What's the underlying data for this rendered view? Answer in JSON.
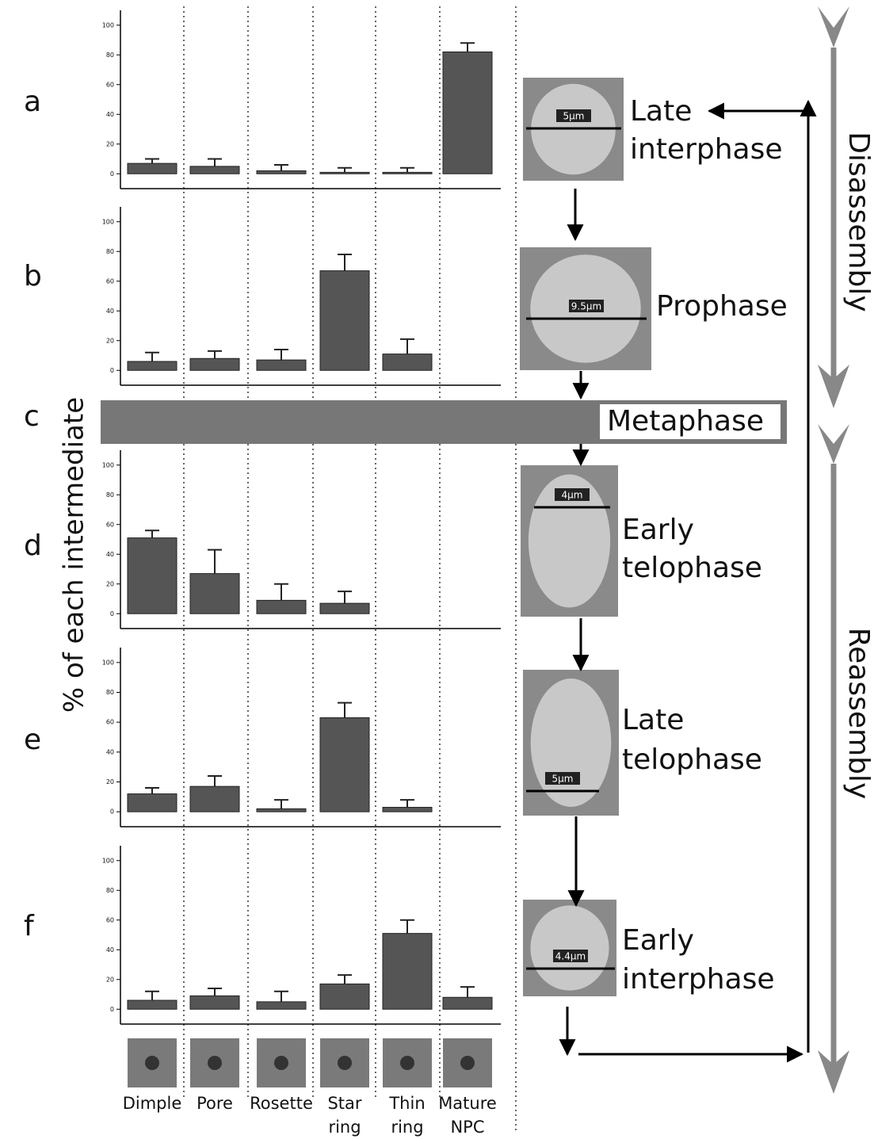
{
  "ylabel": "% of each intermediate",
  "categories": [
    [
      "Dimple"
    ],
    [
      "Pore"
    ],
    [
      "Rosette"
    ],
    [
      "Star",
      "ring"
    ],
    [
      "Thin",
      "ring"
    ],
    [
      "Mature",
      "NPC"
    ]
  ],
  "metaphase": {
    "label": "c",
    "stage": "Metaphase"
  },
  "phases": [
    "Disassembly",
    "Reassembly"
  ],
  "chart_data": [
    {
      "type": "bar",
      "label": "a",
      "stage": [
        "Late",
        "interphase"
      ],
      "scale_bar": "5µm",
      "color": "#555555",
      "values": [
        7,
        5,
        2,
        1,
        1,
        82
      ],
      "errors": [
        3,
        5,
        4,
        3,
        3,
        6
      ],
      "ylim": [
        -10,
        110
      ],
      "yticks": [
        0,
        20,
        40,
        60,
        80,
        100
      ]
    },
    {
      "type": "bar",
      "label": "b",
      "stage": [
        "Prophase"
      ],
      "scale_bar": "9.5µm",
      "color": "#555555",
      "values": [
        6,
        8,
        7,
        67,
        11,
        null
      ],
      "errors": [
        6,
        5,
        7,
        11,
        10,
        null
      ],
      "ylim": [
        -10,
        110
      ],
      "yticks": [
        0,
        20,
        40,
        60,
        80,
        100
      ]
    },
    {
      "type": "bar",
      "label": "d",
      "stage": [
        "Early",
        "telophase"
      ],
      "scale_bar": "4µm",
      "color": "#555555",
      "values": [
        51,
        27,
        9,
        7,
        null,
        null
      ],
      "errors": [
        5,
        16,
        11,
        8,
        null,
        null
      ],
      "ylim": [
        -10,
        110
      ],
      "yticks": [
        0,
        20,
        40,
        60,
        80,
        100
      ]
    },
    {
      "type": "bar",
      "label": "e",
      "stage": [
        "Late",
        "telophase"
      ],
      "scale_bar": "5µm",
      "color": "#555555",
      "values": [
        12,
        17,
        2,
        63,
        3,
        null
      ],
      "errors": [
        4,
        7,
        6,
        10,
        5,
        null
      ],
      "ylim": [
        -10,
        110
      ],
      "yticks": [
        0,
        20,
        40,
        60,
        80,
        100
      ]
    },
    {
      "type": "bar",
      "label": "f",
      "stage": [
        "Early",
        "interphase"
      ],
      "scale_bar": "4.4µm",
      "color": "#555555",
      "values": [
        6,
        9,
        5,
        17,
        51,
        8
      ],
      "errors": [
        6,
        5,
        7,
        6,
        9,
        7
      ],
      "ylim": [
        -10,
        110
      ],
      "yticks": [
        0,
        20,
        40,
        60,
        80,
        100
      ]
    }
  ]
}
